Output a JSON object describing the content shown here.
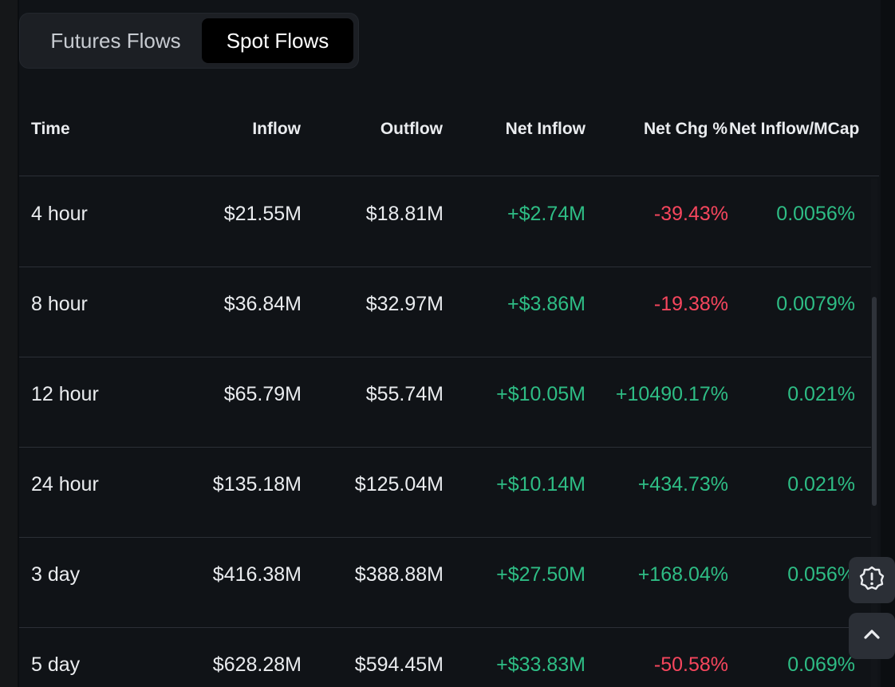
{
  "tabs": [
    {
      "label": "Futures Flows",
      "active": false
    },
    {
      "label": "Spot Flows",
      "active": true
    }
  ],
  "table": {
    "headers": {
      "time": "Time",
      "inflow": "Inflow",
      "outflow": "Outflow",
      "net_inflow": "Net Inflow",
      "net_chg": "Net Chg %",
      "net_inflow_mcap": "Net Inflow/MCap"
    },
    "rows": [
      {
        "time": "4 hour",
        "inflow": "$21.55M",
        "outflow": "$18.81M",
        "net_inflow": "+$2.74M",
        "net_chg": "-39.43%",
        "net_inflow_mcap": "0.0056%"
      },
      {
        "time": "8 hour",
        "inflow": "$36.84M",
        "outflow": "$32.97M",
        "net_inflow": "+$3.86M",
        "net_chg": "-19.38%",
        "net_inflow_mcap": "0.0079%"
      },
      {
        "time": "12 hour",
        "inflow": "$65.79M",
        "outflow": "$55.74M",
        "net_inflow": "+$10.05M",
        "net_chg": "+10490.17%",
        "net_inflow_mcap": "0.021%"
      },
      {
        "time": "24 hour",
        "inflow": "$135.18M",
        "outflow": "$125.04M",
        "net_inflow": "+$10.14M",
        "net_chg": "+434.73%",
        "net_inflow_mcap": "0.021%"
      },
      {
        "time": "3 day",
        "inflow": "$416.38M",
        "outflow": "$388.88M",
        "net_inflow": "+$27.50M",
        "net_chg": "+168.04%",
        "net_inflow_mcap": "0.056%"
      },
      {
        "time": "5 day",
        "inflow": "$628.28M",
        "outflow": "$594.45M",
        "net_inflow": "+$33.83M",
        "net_chg": "-50.58%",
        "net_inflow_mcap": "0.069%"
      }
    ]
  },
  "icons": {
    "feedback": "feedback-alert-icon",
    "back_to_top": "chevron-up-icon"
  },
  "colors": {
    "positive": "#2ebd85",
    "negative": "#f6465d",
    "background": "#0b0e11",
    "panel": "#101317"
  }
}
